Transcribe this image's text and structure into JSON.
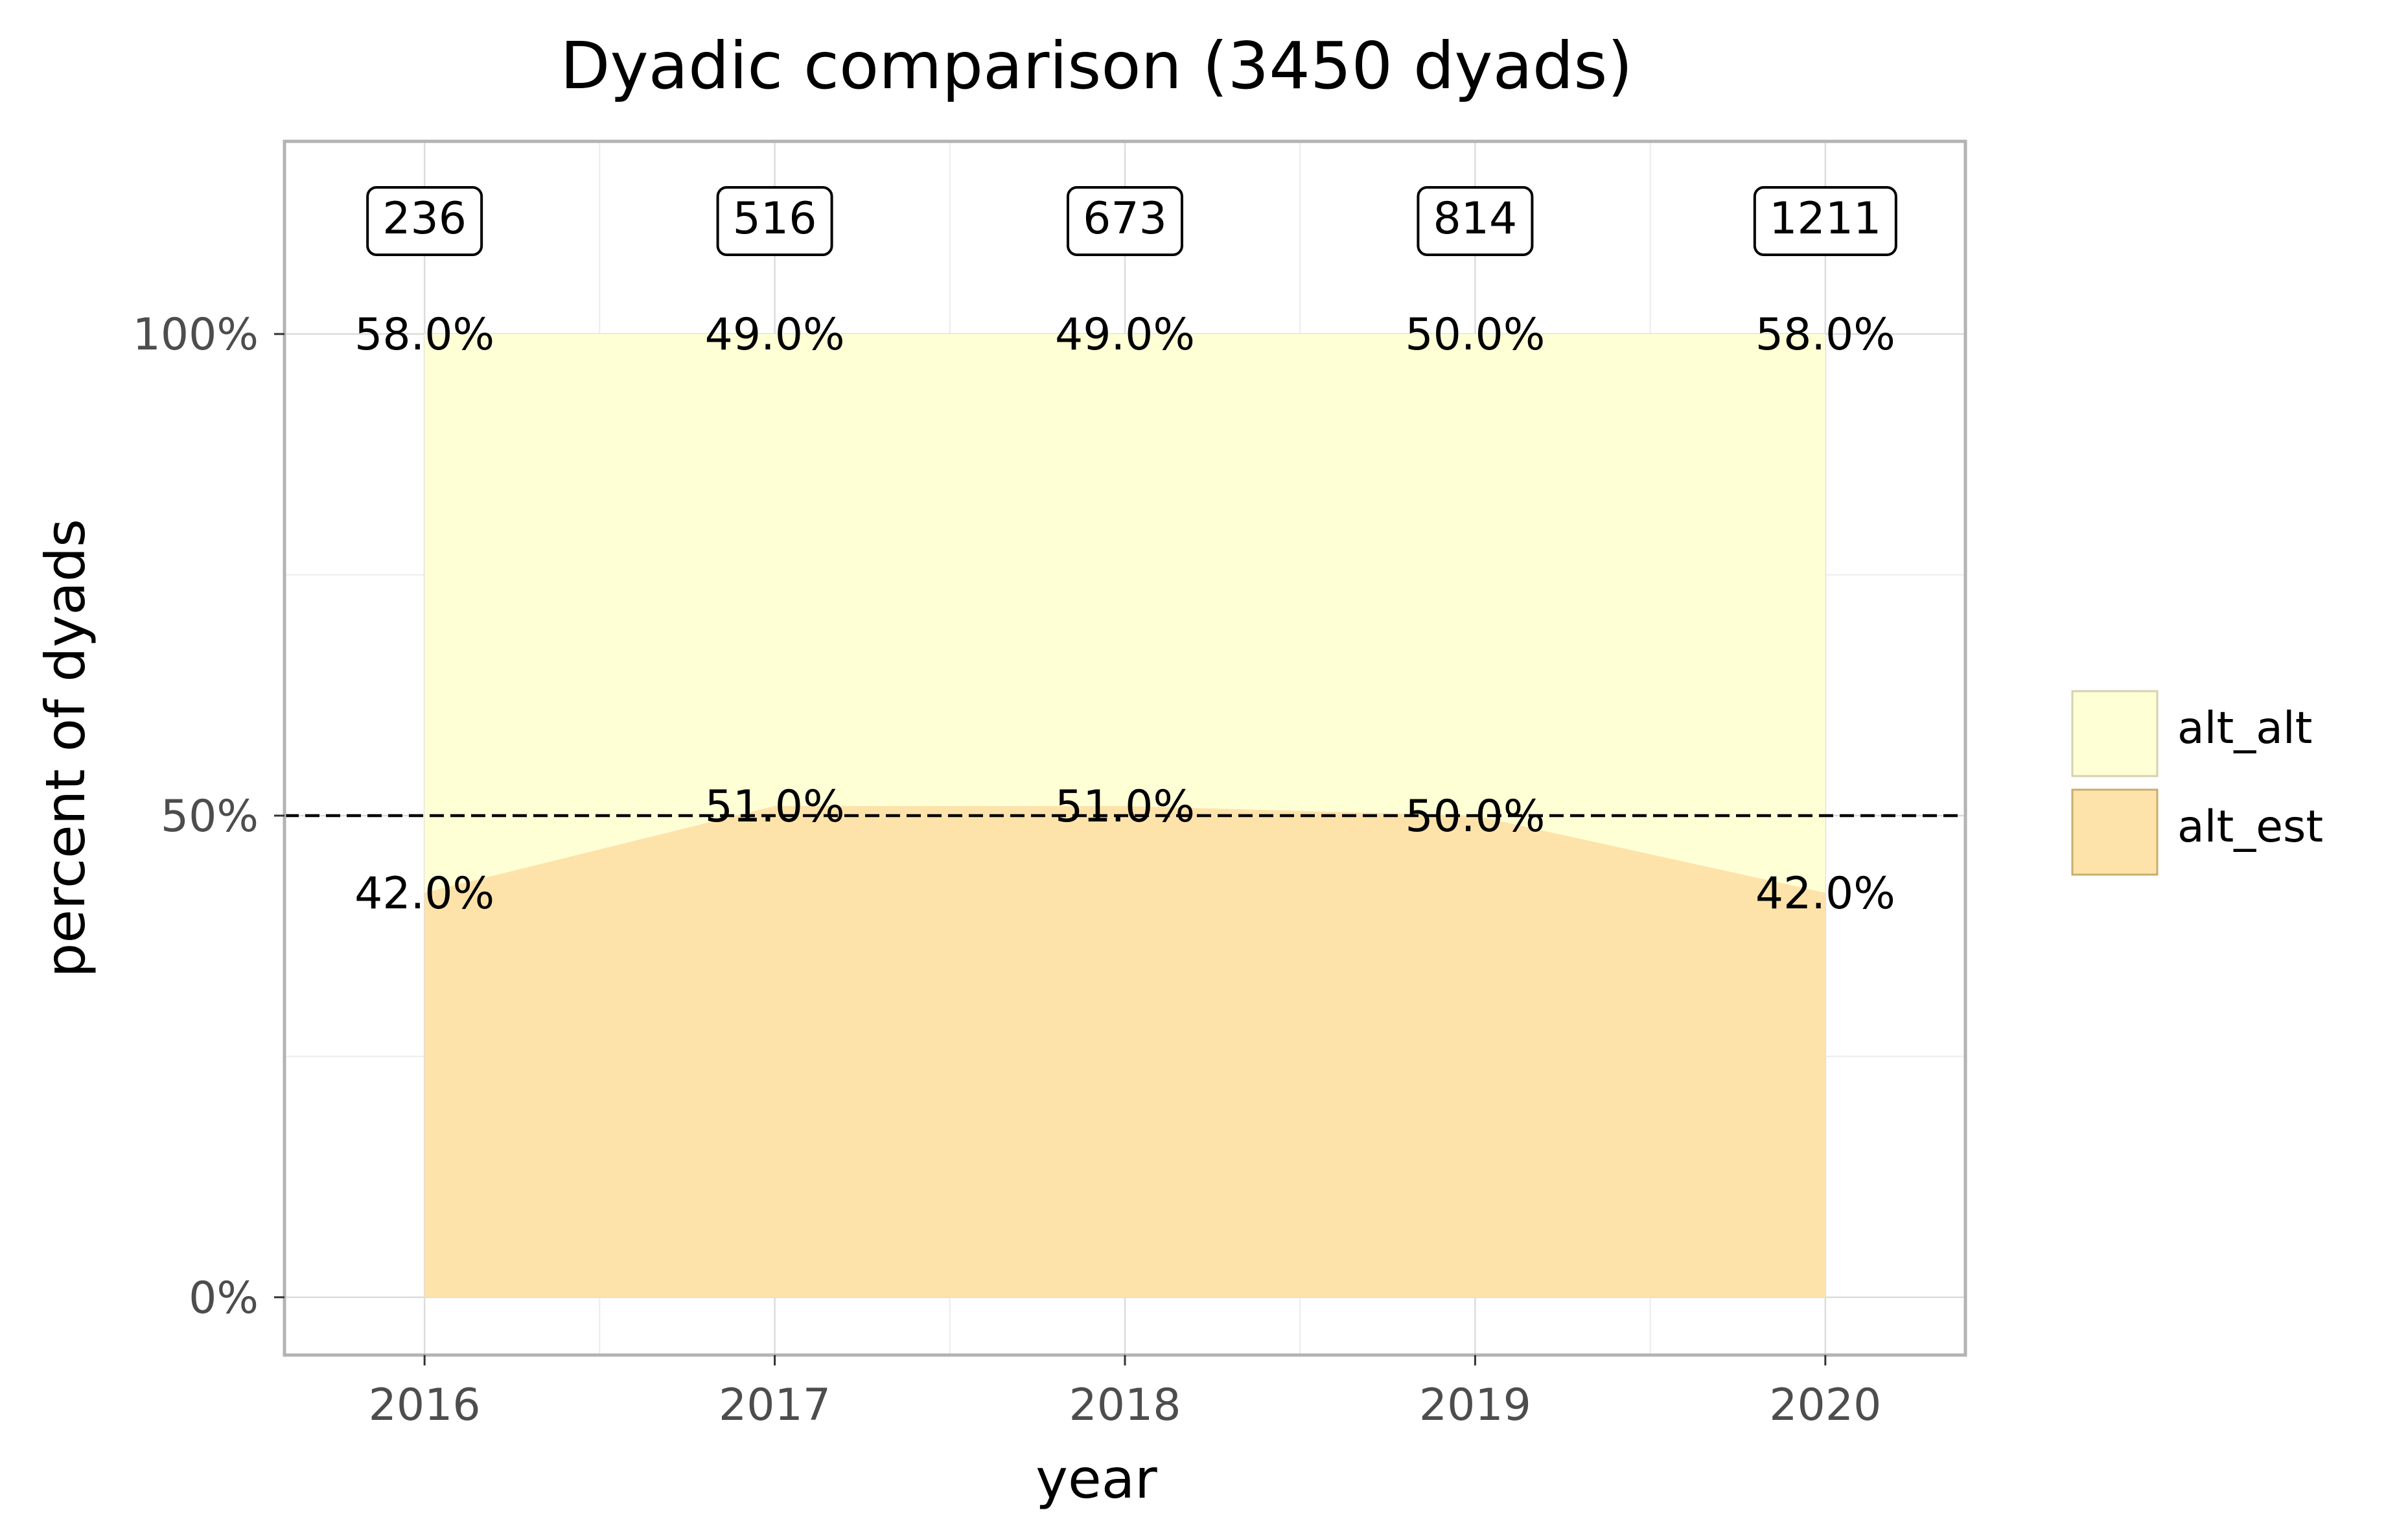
{
  "chart_data": {
    "type": "area",
    "title": "Dyadic comparison (3450 dyads)",
    "xlabel": "year",
    "ylabel": "percent of dyads",
    "x": [
      "2016",
      "2017",
      "2018",
      "2019",
      "2020"
    ],
    "xlim": [
      2015.6,
      2020.4
    ],
    "ylim": [
      -0.06,
      1.2
    ],
    "y_ticks": [
      {
        "value": 0,
        "label": "0%"
      },
      {
        "value": 0.5,
        "label": "50%"
      },
      {
        "value": 1.0,
        "label": "100%"
      }
    ],
    "stacked": true,
    "series": [
      {
        "name": "alt_est",
        "values": [
          0.42,
          0.51,
          0.51,
          0.5,
          0.42
        ],
        "labels": [
          "42.0%",
          "51.0%",
          "51.0%",
          "50.0%",
          "42.0%"
        ],
        "color": "#fde3aa"
      },
      {
        "name": "alt_alt",
        "values": [
          0.58,
          0.49,
          0.49,
          0.5,
          0.58
        ],
        "labels": [
          "58.0%",
          "49.0%",
          "49.0%",
          "50.0%",
          "58.0%"
        ],
        "color": "#ffffd5"
      }
    ],
    "counts": [
      "236",
      "516",
      "673",
      "814",
      "1211"
    ],
    "reference_line": {
      "value": 0.5,
      "style": "dashed",
      "color": "#000000"
    },
    "grid": true,
    "legend_position": "right"
  }
}
